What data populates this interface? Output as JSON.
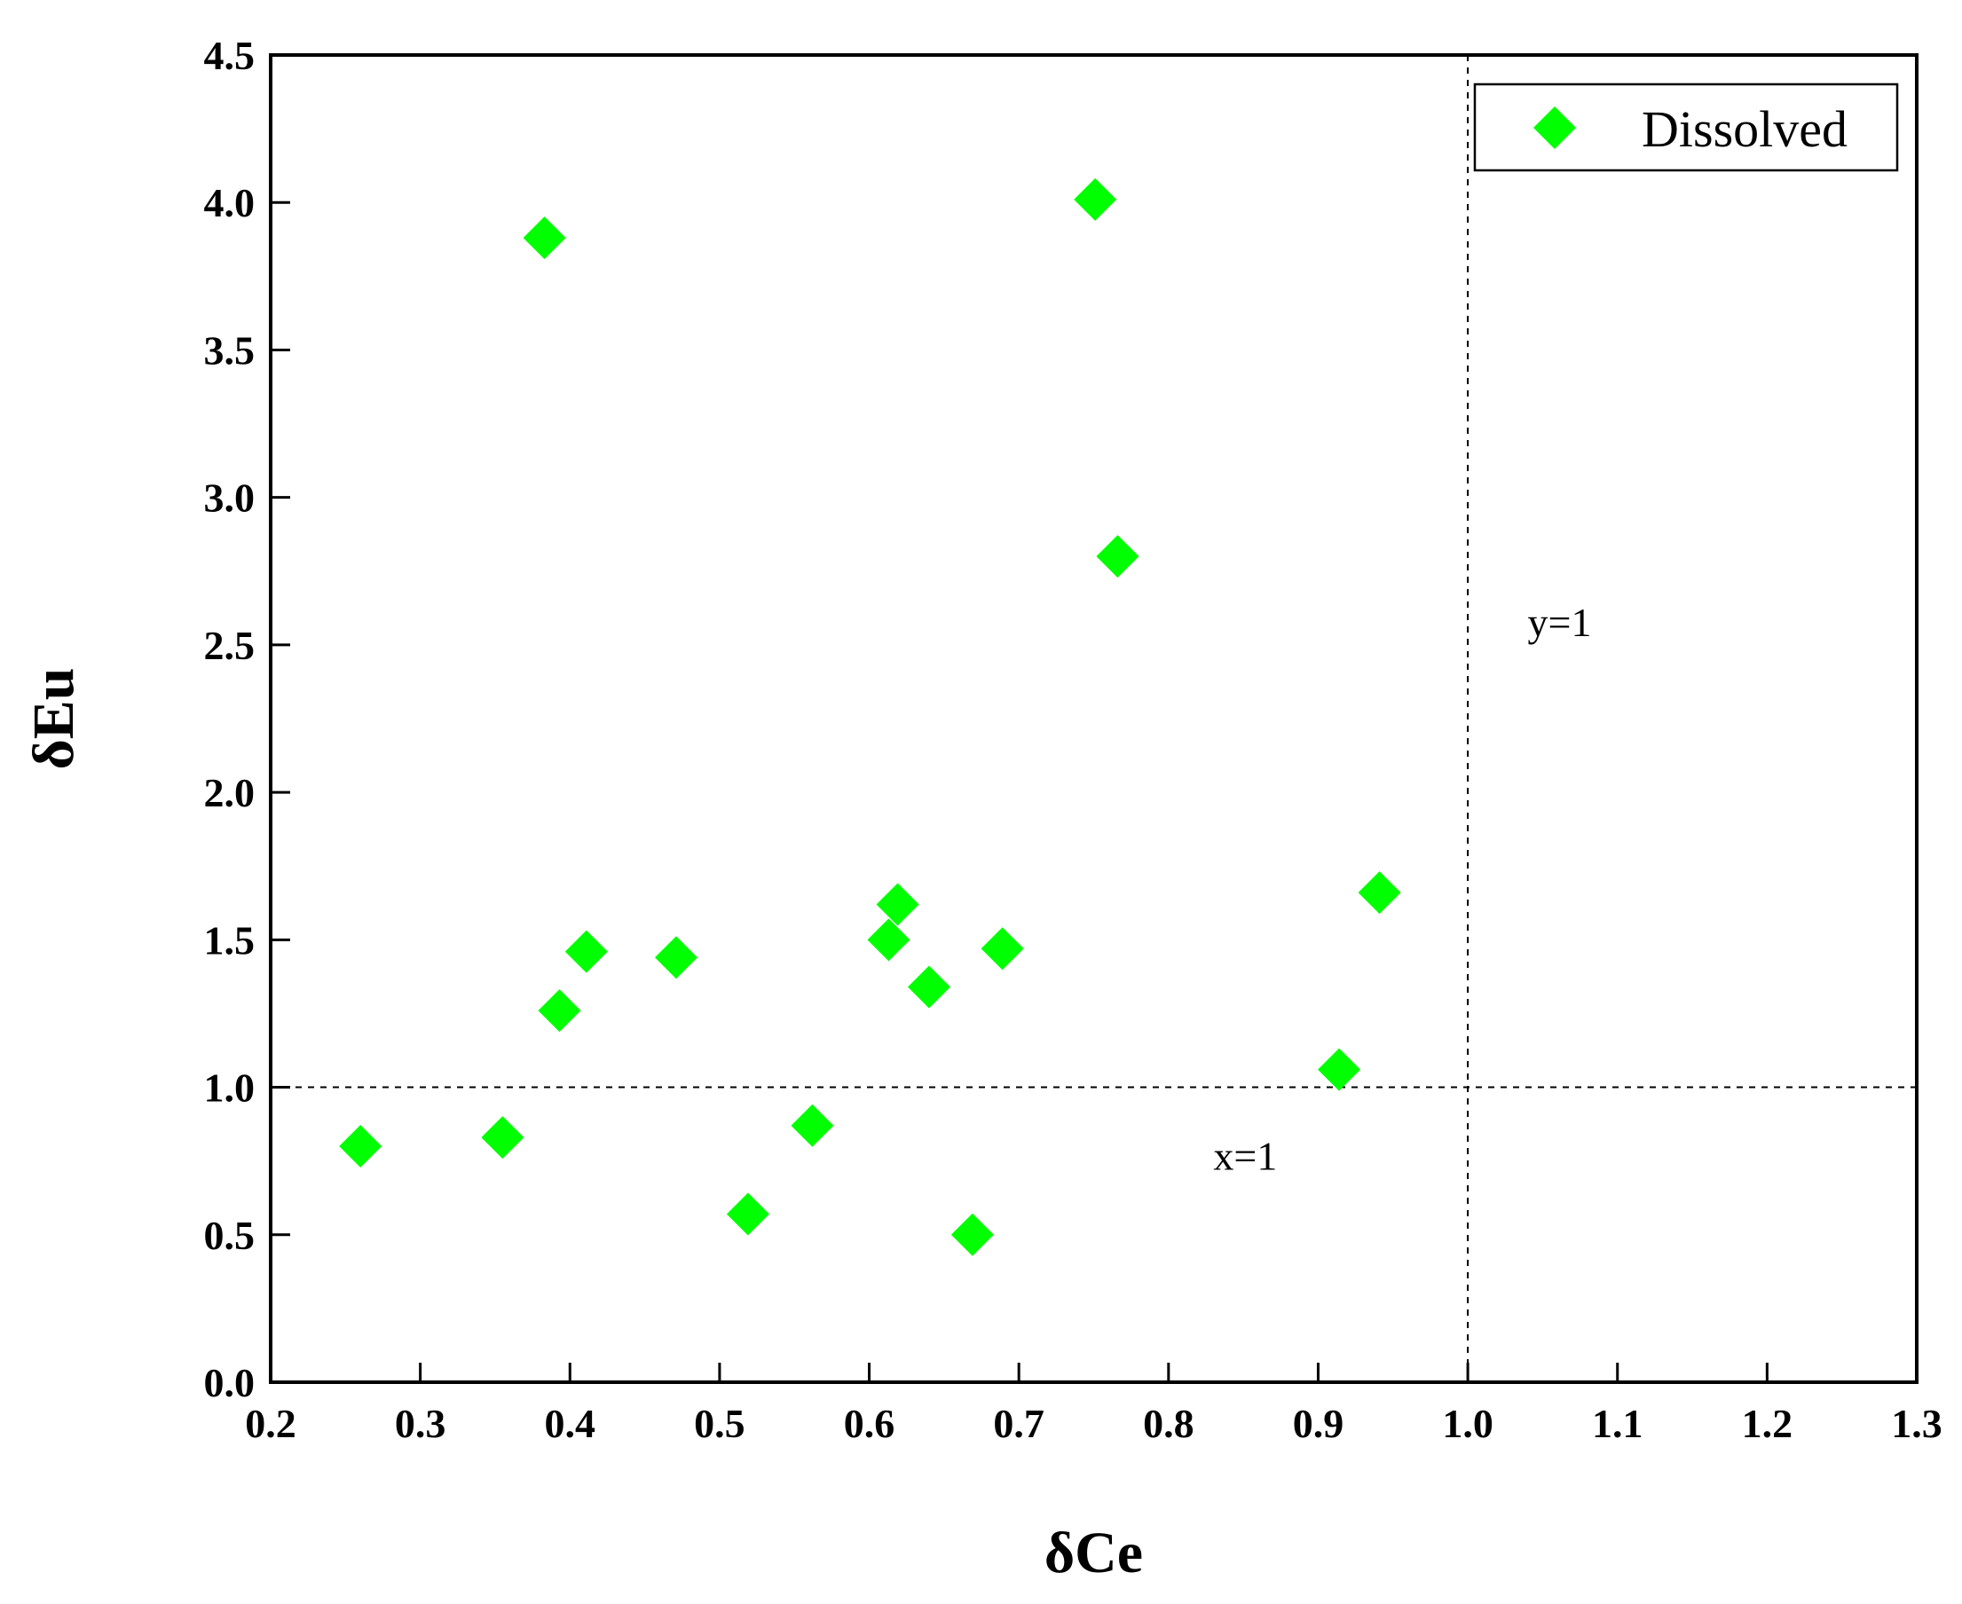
{
  "chart_data": {
    "type": "scatter",
    "xlabel": "δCe",
    "ylabel": "δEu",
    "xlim": [
      0.2,
      1.3
    ],
    "ylim": [
      0.0,
      4.5
    ],
    "xticks": [
      "0.2",
      "0.3",
      "0.4",
      "0.5",
      "0.6",
      "0.7",
      "0.8",
      "0.9",
      "1.0",
      "1.1",
      "1.2",
      "1.3"
    ],
    "yticks": [
      "0.0",
      "0.5",
      "1.0",
      "1.5",
      "2.0",
      "2.5",
      "3.0",
      "3.5",
      "4.0",
      "4.5"
    ],
    "grid": false,
    "legend_position": "top-right",
    "series": [
      {
        "name": "Dissolved",
        "color": "#00ff00",
        "marker": "diamond",
        "x": [
          0.26,
          0.355,
          0.383,
          0.393,
          0.411,
          0.471,
          0.519,
          0.562,
          0.613,
          0.619,
          0.64,
          0.669,
          0.689,
          0.751,
          0.766,
          0.914,
          0.941
        ],
        "y": [
          0.8,
          0.83,
          3.88,
          1.26,
          1.46,
          1.44,
          0.57,
          0.87,
          1.5,
          1.62,
          1.34,
          0.5,
          1.47,
          4.01,
          2.8,
          1.06,
          1.66
        ]
      }
    ],
    "reference_lines": [
      {
        "orientation": "horizontal",
        "value": 1.0,
        "style": "dashed"
      },
      {
        "orientation": "vertical",
        "value": 1.0,
        "style": "dashed"
      }
    ],
    "annotations": [
      {
        "text": "x=1",
        "x": 0.83,
        "y": 0.72
      },
      {
        "text": "y=1",
        "x": 1.04,
        "y": 2.53
      }
    ]
  }
}
